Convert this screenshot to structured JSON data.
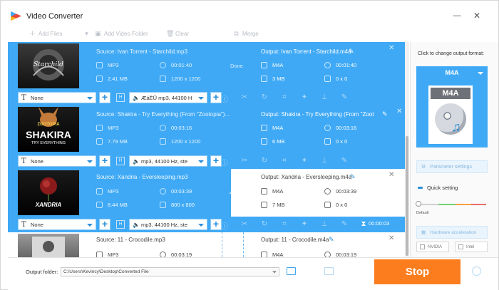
{
  "app": {
    "title": "Video Converter",
    "minimize": "—",
    "close": "✕"
  },
  "toolbar": {
    "add_files": "Add Files",
    "add_video_folder": "Add Video Folder",
    "clear": "Clear",
    "merge": "Merge"
  },
  "tasks": [
    {
      "source_title": "Source: Ivan Torrent - Starchild.mp3",
      "output_title": "Output: Ivan Torrent - Starchild.m4a",
      "status": "Done",
      "source": {
        "format": "MP3",
        "duration": "00:01:40",
        "size": "2.41 MB",
        "resolution": "1200 x 1200"
      },
      "output": {
        "format": "M4A",
        "duration": "00:01:40",
        "size": "3 MB",
        "resolution": "0 x 0"
      },
      "subtitle": "None",
      "audio": "ÆáÈÛ mp3, 44100 H",
      "thumb_caption": "Starchild"
    },
    {
      "source_title": "Source: Shakira - Try Everything (From \"Zootopia\")...",
      "output_title": "Output: Shakira - Try Everything (From \"Zoot",
      "status": "",
      "source": {
        "format": "MP3",
        "duration": "00:03:16",
        "size": "7.79 MB",
        "resolution": "1200 x 1200"
      },
      "output": {
        "format": "M4A",
        "duration": "00:03:16",
        "size": "6 MB",
        "resolution": "0 x 0"
      },
      "subtitle": "None",
      "audio": "mp3, 44100 Hz, ste",
      "thumb_caption": "SHAKIRA",
      "thumb_top": "ZOOTOPIA",
      "thumb_bottom": "TRY EVERYTHING"
    },
    {
      "source_title": "Source: Xandria - Eversleeping.mp3",
      "output_title": "Output: Xandria - Eversleeping.m4a",
      "status": "45.6%",
      "source": {
        "format": "MP3",
        "duration": "00:03:39",
        "size": "8.44 MB",
        "resolution": "800 x 800"
      },
      "output": {
        "format": "M4A",
        "duration": "00:03:39",
        "size": "7 MB",
        "resolution": "0 x 0"
      },
      "subtitle": "None",
      "audio": "mp3, 44100 Hz, ste",
      "thumb_caption": "XANDRIA",
      "timer": "00:00:03",
      "progress": 0.456
    },
    {
      "source_title": "Source: 11 - Crocodile.mp3",
      "output_title": "Output: 11 - Crocodile.m4a",
      "source": {
        "format": "MP3",
        "duration": "00:03:19"
      },
      "output": {
        "format": "M4A",
        "duration": "00:03:19"
      }
    }
  ],
  "right_panel": {
    "hint": "Click to change output format:",
    "format": "M4A",
    "icon_band": "M4A",
    "parameter_settings": "Parameter settings",
    "quick_setting": "Quick setting",
    "slider_label": "Default",
    "hardware_acceleration": "Hardware acceleration",
    "nvidia": "NVIDIA",
    "intel": "Intel"
  },
  "bottom": {
    "output_folder_label": "Output folder:",
    "output_folder_value": "C:\\Users\\Kevincy\\Desktop\\Converted File",
    "stop": "Stop"
  },
  "colors": {
    "accent": "#3fa9f5",
    "stop": "#fb7d1e"
  }
}
